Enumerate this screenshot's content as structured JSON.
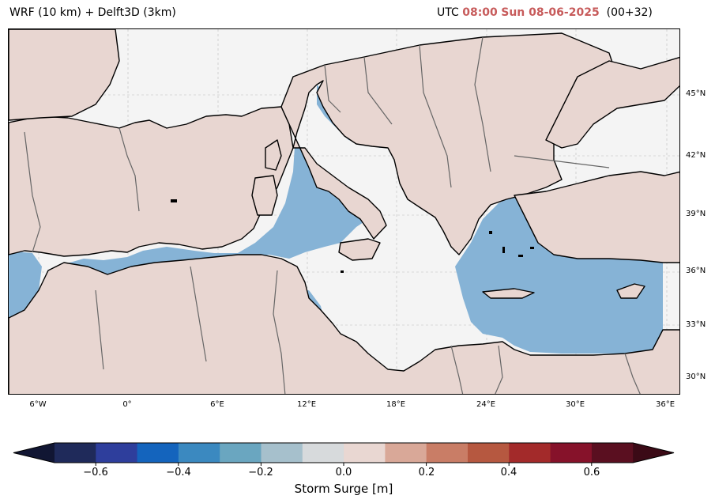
{
  "header": {
    "model": "WRF (10 km) + Delft3D (3km)",
    "utc_prefix": "UTC",
    "time": "08:00",
    "date": "Sun 08-06-2025",
    "run": "(00+32)"
  },
  "map": {
    "lat_labels": [
      "45°N",
      "42°N",
      "39°N",
      "36°N",
      "33°N",
      "30°N"
    ],
    "lon_labels": [
      "6°W",
      "0°",
      "6°E",
      "12°E",
      "18°E",
      "24°E",
      "30°E",
      "36°E"
    ],
    "land_color": "#e8d6d1",
    "sea_color": "#86b3d6",
    "outside_color": "#f4f4f4"
  },
  "colorbar": {
    "label": "Storm Surge [m]",
    "ticks": [
      "−0.6",
      "−0.4",
      "−0.2",
      "0.0",
      "0.2",
      "0.4",
      "0.6"
    ],
    "tick_values": [
      -0.6,
      -0.4,
      -0.2,
      0.0,
      0.2,
      0.4,
      0.6
    ],
    "under_color": "#111633",
    "over_color": "#3b0a16",
    "colors": [
      "#1f2a5a",
      "#2e3e9c",
      "#1464bd",
      "#3b89c0",
      "#6aa6c0",
      "#a6c0cc",
      "#d7dadc",
      "#e9d7d2",
      "#d9a898",
      "#c97d66",
      "#b65840",
      "#a32a2a",
      "#86122a",
      "#5a0f20"
    ]
  }
}
